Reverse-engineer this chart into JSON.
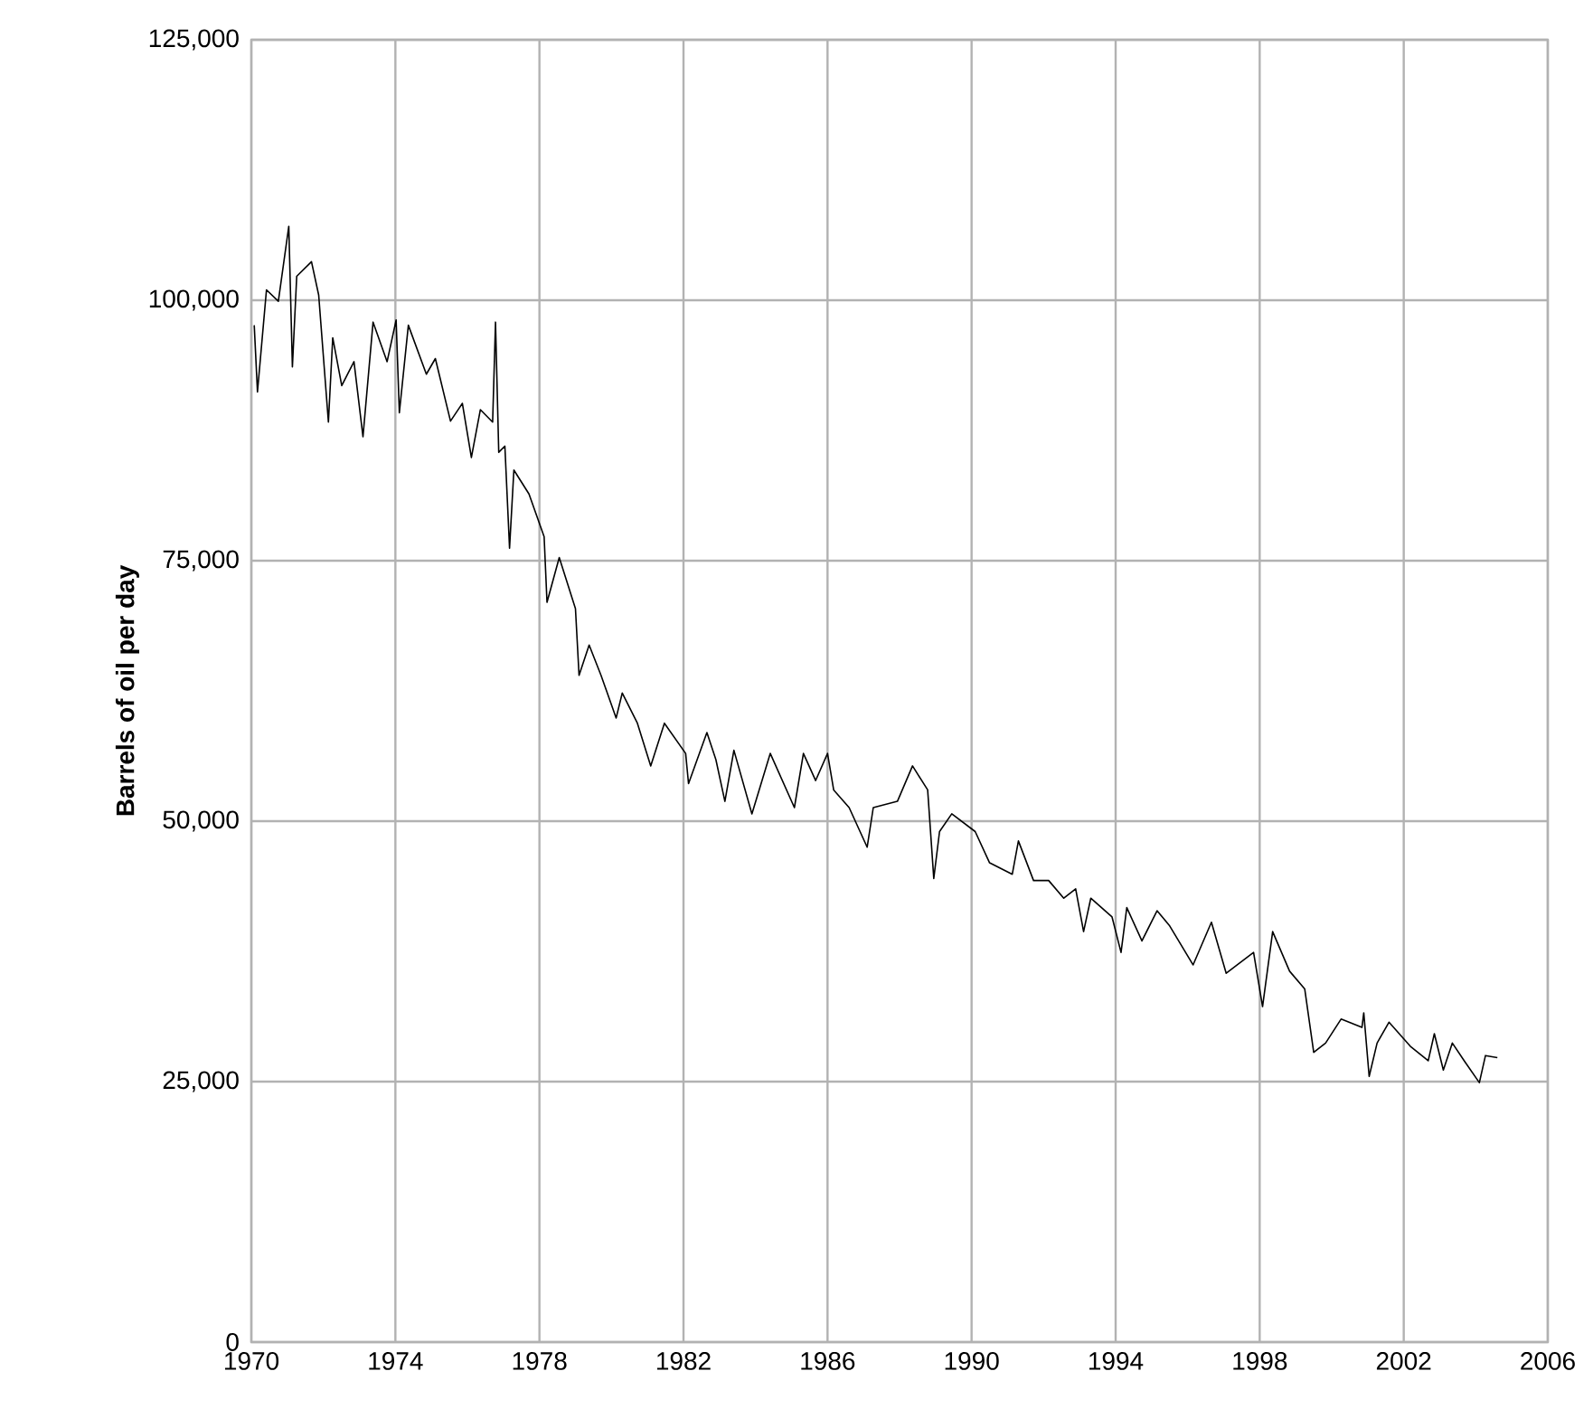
{
  "chart_data": {
    "type": "line",
    "ylabel": "Barrels of oil per day",
    "x": [
      1970.08,
      1970.17,
      1970.42,
      1970.75,
      1971.04,
      1971.14,
      1971.26,
      1971.67,
      1971.87,
      1972.14,
      1972.26,
      1972.51,
      1972.85,
      1973.1,
      1973.38,
      1973.77,
      1974.02,
      1974.11,
      1974.36,
      1974.86,
      1975.11,
      1975.53,
      1975.86,
      1976.11,
      1976.36,
      1976.7,
      1976.78,
      1976.87,
      1977.04,
      1977.17,
      1977.29,
      1977.71,
      1978.13,
      1978.21,
      1978.55,
      1979.0,
      1979.1,
      1979.38,
      1979.71,
      1980.13,
      1980.3,
      1980.72,
      1981.09,
      1981.47,
      1982.06,
      1982.14,
      1982.65,
      1982.9,
      1983.15,
      1983.4,
      1983.9,
      1984.41,
      1985.08,
      1985.33,
      1985.67,
      1986.0,
      1986.17,
      1986.6,
      1987.1,
      1987.27,
      1987.94,
      1988.36,
      1988.78,
      1988.95,
      1989.11,
      1989.45,
      1990.1,
      1990.5,
      1991.13,
      1991.3,
      1991.72,
      1992.14,
      1992.56,
      1992.89,
      1993.11,
      1993.31,
      1993.9,
      1994.15,
      1994.31,
      1994.73,
      1995.15,
      1995.49,
      1996.15,
      1996.66,
      1997.07,
      1997.83,
      1998.08,
      1998.36,
      1998.83,
      1999.25,
      1999.5,
      1999.83,
      2000.26,
      2000.84,
      2000.89,
      2001.04,
      2001.26,
      2001.59,
      2002.18,
      2002.68,
      2002.85,
      2003.1,
      2003.35,
      2003.68,
      2004.1,
      2004.27,
      2004.6
    ],
    "series": [
      {
        "color": "#000000",
        "values": [
          97600,
          91200,
          101000,
          99900,
          107100,
          93600,
          102300,
          103700,
          100500,
          88300,
          96400,
          91800,
          94100,
          86900,
          97900,
          94100,
          98100,
          89200,
          97600,
          92900,
          94400,
          88400,
          90100,
          84900,
          89500,
          88300,
          97900,
          85400,
          86000,
          76200,
          83700,
          81400,
          77300,
          71000,
          75300,
          70400,
          64000,
          66900,
          64000,
          59900,
          62300,
          59400,
          55300,
          59400,
          56500,
          53600,
          58500,
          55900,
          51900,
          56800,
          50700,
          56500,
          51300,
          56500,
          53900,
          56500,
          53000,
          51300,
          47500,
          51300,
          51900,
          55300,
          53000,
          44500,
          49000,
          50700,
          49000,
          46000,
          44900,
          48100,
          44300,
          44300,
          42600,
          43500,
          39400,
          42600,
          40800,
          37400,
          41700,
          38500,
          41400,
          40000,
          36200,
          40300,
          35400,
          37400,
          32200,
          39400,
          35600,
          33900,
          27800,
          28700,
          31000,
          30200,
          31600,
          25500,
          28700,
          30700,
          28400,
          27000,
          29600,
          26100,
          28700,
          27000,
          24900,
          27500,
          27300
        ]
      }
    ],
    "xlim": [
      1970,
      2006
    ],
    "xticks": [
      1970,
      1974,
      1978,
      1982,
      1986,
      1990,
      1994,
      1998,
      2002,
      2006
    ],
    "ylim": [
      0,
      125000
    ],
    "yticks": [
      0,
      {
        "value": 25000,
        "label": "25,000"
      },
      {
        "value": 50000,
        "label": "50,000"
      },
      {
        "value": 75000,
        "label": "75,000"
      },
      {
        "value": 100000,
        "label": "100,000"
      },
      {
        "value": 125000,
        "label": "125,000"
      }
    ],
    "grid": true,
    "marker": "none",
    "line_style": "solid"
  }
}
